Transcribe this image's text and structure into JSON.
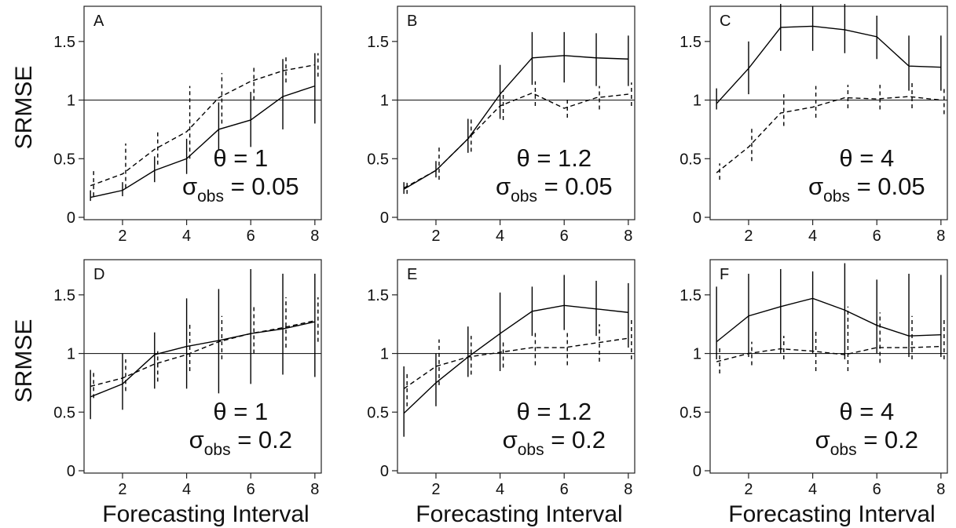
{
  "chart_data": {
    "type": "line",
    "ylabel": "SRMSE",
    "xlabel": "Forecasting Interval",
    "x_ticks": [
      2,
      4,
      6,
      8
    ],
    "y_ticks": [
      "0",
      "0.5",
      "1",
      "1.5"
    ],
    "xlim": [
      0.8,
      8.2
    ],
    "ylim": [
      -0.02,
      1.8
    ],
    "reference_line_y": 1,
    "series_styles": {
      "solid": "#000000",
      "dashed": "#000000"
    },
    "panels": [
      {
        "letter": "A",
        "theta_text": "θ = 1",
        "sigma_symbol": "σ",
        "sigma_sub": "obs",
        "sigma_value": " = 0.05",
        "x": [
          1,
          2,
          3,
          4,
          5,
          6,
          7,
          8
        ],
        "solid": {
          "values": [
            0.17,
            0.23,
            0.4,
            0.5,
            0.75,
            0.83,
            1.03,
            1.12
          ],
          "err": [
            [
              0.14,
              0.23
            ],
            [
              0.18,
              0.3
            ],
            [
              0.3,
              0.52
            ],
            [
              0.37,
              0.67
            ],
            [
              0.57,
              0.98
            ],
            [
              0.6,
              1.07
            ],
            [
              0.75,
              1.35
            ],
            [
              0.8,
              1.4
            ]
          ]
        },
        "dashed": {
          "values": [
            0.27,
            0.37,
            0.58,
            0.73,
            1.02,
            1.16,
            1.25,
            1.3
          ],
          "err": [
            [
              0.18,
              0.42
            ],
            [
              0.25,
              0.63
            ],
            [
              0.45,
              0.73
            ],
            [
              0.5,
              1.12
            ],
            [
              0.8,
              1.23
            ],
            [
              1.0,
              1.3
            ],
            [
              1.15,
              1.37
            ],
            [
              1.2,
              1.4
            ]
          ]
        }
      },
      {
        "letter": "B",
        "theta_text": "θ = 1.2",
        "sigma_symbol": "σ",
        "sigma_sub": "obs",
        "sigma_value": " = 0.05",
        "x": [
          1,
          2,
          3,
          4,
          5,
          6,
          7,
          8
        ],
        "solid": {
          "values": [
            0.24,
            0.4,
            0.67,
            1.05,
            1.36,
            1.38,
            1.36,
            1.35
          ],
          "err": [
            [
              0.2,
              0.3
            ],
            [
              0.34,
              0.48
            ],
            [
              0.55,
              0.84
            ],
            [
              0.84,
              1.3
            ],
            [
              1.13,
              1.58
            ],
            [
              1.15,
              1.58
            ],
            [
              1.12,
              1.57
            ],
            [
              1.12,
              1.55
            ]
          ]
        },
        "dashed": {
          "values": [
            0.25,
            0.4,
            0.67,
            0.95,
            1.06,
            0.93,
            1.02,
            1.05
          ],
          "err": [
            [
              0.2,
              0.32
            ],
            [
              0.32,
              0.62
            ],
            [
              0.56,
              0.85
            ],
            [
              0.83,
              1.08
            ],
            [
              0.95,
              1.16
            ],
            [
              0.85,
              1.03
            ],
            [
              0.92,
              1.12
            ],
            [
              0.95,
              1.15
            ]
          ]
        }
      },
      {
        "letter": "C",
        "theta_text": "θ = 4",
        "sigma_symbol": "σ",
        "sigma_sub": "obs",
        "sigma_value": " = 0.05",
        "x": [
          1,
          2,
          3,
          4,
          5,
          6,
          7,
          8
        ],
        "solid": {
          "values": [
            0.97,
            1.27,
            1.62,
            1.63,
            1.6,
            1.54,
            1.29,
            1.28
          ],
          "err": [
            [
              0.92,
              1.1
            ],
            [
              1.05,
              1.5
            ],
            [
              1.42,
              1.82
            ],
            [
              1.42,
              1.8
            ],
            [
              1.4,
              1.82
            ],
            [
              1.35,
              1.72
            ],
            [
              1.08,
              1.55
            ],
            [
              1.08,
              1.55
            ]
          ]
        },
        "dashed": {
          "values": [
            0.38,
            0.6,
            0.89,
            0.94,
            1.02,
            1.01,
            1.03,
            1.0
          ],
          "err": [
            [
              0.32,
              0.46
            ],
            [
              0.48,
              0.78
            ],
            [
              0.78,
              1.05
            ],
            [
              0.85,
              1.12
            ],
            [
              0.93,
              1.13
            ],
            [
              0.92,
              1.13
            ],
            [
              0.93,
              1.15
            ],
            [
              0.88,
              1.1
            ]
          ]
        }
      },
      {
        "letter": "D",
        "theta_text": "θ = 1",
        "sigma_symbol": "σ",
        "sigma_sub": "obs",
        "sigma_value": " = 0.2",
        "x": [
          1,
          2,
          3,
          4,
          5,
          6,
          7,
          8
        ],
        "solid": {
          "values": [
            0.63,
            0.74,
            0.99,
            1.06,
            1.11,
            1.17,
            1.21,
            1.27
          ],
          "err": [
            [
              0.44,
              0.86
            ],
            [
              0.52,
              1.0
            ],
            [
              0.7,
              1.18
            ],
            [
              0.7,
              1.47
            ],
            [
              0.66,
              1.55
            ],
            [
              0.74,
              1.72
            ],
            [
              0.82,
              1.68
            ],
            [
              0.8,
              1.68
            ]
          ]
        },
        "dashed": {
          "values": [
            0.72,
            0.79,
            0.91,
            0.99,
            1.1,
            1.17,
            1.22,
            1.28
          ],
          "err": [
            [
              0.62,
              0.86
            ],
            [
              0.68,
              0.95
            ],
            [
              0.76,
              1.02
            ],
            [
              0.85,
              1.26
            ],
            [
              0.95,
              1.32
            ],
            [
              1.0,
              1.42
            ],
            [
              1.05,
              1.48
            ],
            [
              1.1,
              1.48
            ]
          ]
        }
      },
      {
        "letter": "E",
        "theta_text": "θ = 1.2",
        "sigma_symbol": "σ",
        "sigma_sub": "obs",
        "sigma_value": " = 0.2",
        "x": [
          1,
          2,
          3,
          4,
          5,
          6,
          7,
          8
        ],
        "solid": {
          "values": [
            0.49,
            0.75,
            0.97,
            1.17,
            1.36,
            1.41,
            1.38,
            1.35
          ],
          "err": [
            [
              0.29,
              0.89
            ],
            [
              0.55,
              1.0
            ],
            [
              0.8,
              1.23
            ],
            [
              0.85,
              1.52
            ],
            [
              1.15,
              1.57
            ],
            [
              1.2,
              1.67
            ],
            [
              1.15,
              1.62
            ],
            [
              1.05,
              1.6
            ]
          ]
        },
        "dashed": {
          "values": [
            0.7,
            0.89,
            0.97,
            1.01,
            1.05,
            1.05,
            1.09,
            1.13
          ],
          "err": [
            [
              0.55,
              0.85
            ],
            [
              0.73,
              1.12
            ],
            [
              0.82,
              1.15
            ],
            [
              0.88,
              1.12
            ],
            [
              0.9,
              1.2
            ],
            [
              0.9,
              1.2
            ],
            [
              0.93,
              1.25
            ],
            [
              0.95,
              1.3
            ]
          ]
        }
      },
      {
        "letter": "F",
        "theta_text": "θ = 4",
        "sigma_symbol": "σ",
        "sigma_sub": "obs",
        "sigma_value": " = 0.2",
        "x": [
          1,
          2,
          3,
          4,
          5,
          6,
          7,
          8
        ],
        "solid": {
          "values": [
            1.1,
            1.32,
            1.4,
            1.47,
            1.37,
            1.24,
            1.15,
            1.16
          ],
          "err": [
            [
              0.95,
              1.57
            ],
            [
              0.97,
              1.68
            ],
            [
              1.0,
              1.72
            ],
            [
              1.0,
              1.7
            ],
            [
              0.95,
              1.77
            ],
            [
              1.0,
              1.63
            ],
            [
              0.97,
              1.68
            ],
            [
              0.97,
              1.67
            ]
          ]
        },
        "dashed": {
          "values": [
            0.93,
            1.0,
            1.04,
            1.02,
            0.99,
            1.05,
            1.05,
            1.06
          ],
          "err": [
            [
              0.83,
              1.07
            ],
            [
              0.9,
              1.1
            ],
            [
              0.95,
              1.15
            ],
            [
              0.85,
              1.2
            ],
            [
              0.85,
              1.4
            ],
            [
              0.92,
              1.35
            ],
            [
              0.95,
              1.32
            ],
            [
              0.95,
              1.3
            ]
          ]
        }
      }
    ]
  }
}
